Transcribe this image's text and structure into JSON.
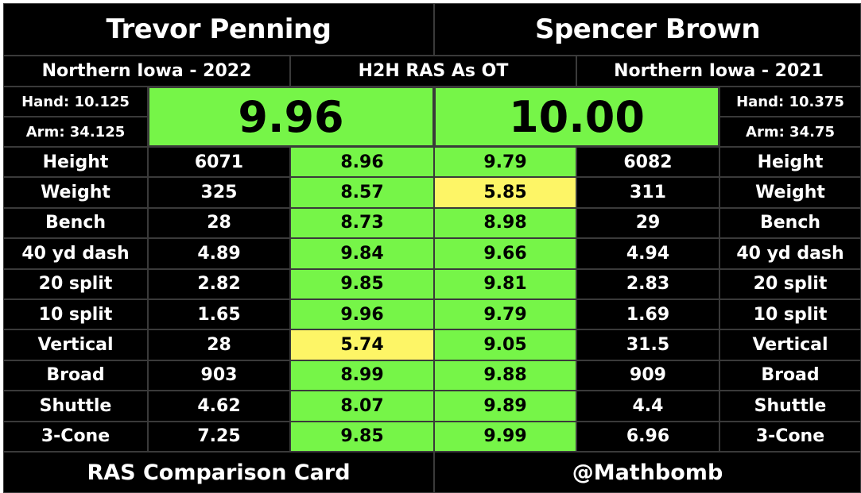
{
  "left_player": {
    "name": "Trevor Penning",
    "school": "Northern Iowa - 2022",
    "hand": "Hand: 10.125",
    "arm": "Arm: 34.125",
    "ras": "9.96"
  },
  "right_player": {
    "name": "Spencer Brown",
    "school": "Northern Iowa - 2021",
    "hand": "Hand: 10.375",
    "arm": "Arm: 34.75",
    "ras": "10.00"
  },
  "center_header": "H2H RAS As OT",
  "rows": [
    {
      "label": "Height",
      "left_value": "6071",
      "left_score": "8.96",
      "right_score": "9.79",
      "right_value": "6082",
      "left_low": false,
      "right_low": false
    },
    {
      "label": "Weight",
      "left_value": "325",
      "left_score": "8.57",
      "right_score": "5.85",
      "right_value": "311",
      "left_low": false,
      "right_low": true
    },
    {
      "label": "Bench",
      "left_value": "28",
      "left_score": "8.73",
      "right_score": "8.98",
      "right_value": "29",
      "left_low": false,
      "right_low": false
    },
    {
      "label": "40 yd dash",
      "left_value": "4.89",
      "left_score": "9.84",
      "right_score": "9.66",
      "right_value": "4.94",
      "left_low": false,
      "right_low": false
    },
    {
      "label": "20 split",
      "left_value": "2.82",
      "left_score": "9.85",
      "right_score": "9.81",
      "right_value": "2.83",
      "left_low": false,
      "right_low": false
    },
    {
      "label": "10 split",
      "left_value": "1.65",
      "left_score": "9.96",
      "right_score": "9.79",
      "right_value": "1.69",
      "left_low": false,
      "right_low": false
    },
    {
      "label": "Vertical",
      "left_value": "28",
      "left_score": "5.74",
      "right_score": "9.05",
      "right_value": "31.5",
      "left_low": true,
      "right_low": false
    },
    {
      "label": "Broad",
      "left_value": "903",
      "left_score": "8.99",
      "right_score": "9.88",
      "right_value": "909",
      "left_low": false,
      "right_low": false
    },
    {
      "label": "Shuttle",
      "left_value": "4.62",
      "left_score": "8.07",
      "right_score": "9.89",
      "right_value": "4.4",
      "left_low": false,
      "right_low": false
    },
    {
      "label": "3-Cone",
      "left_value": "7.25",
      "left_score": "9.85",
      "right_score": "9.99",
      "right_value": "6.96",
      "left_low": false,
      "right_low": false
    }
  ],
  "footer": {
    "left": "RAS Comparison Card",
    "right": "@Mathbomb"
  },
  "colors": {
    "background": "#000000",
    "score_good": "#76f548",
    "score_low": "#fdf566",
    "gridline": "#3a3a3a"
  }
}
